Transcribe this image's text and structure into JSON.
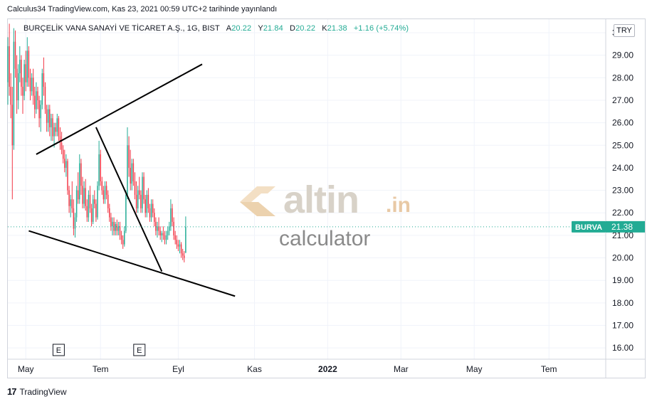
{
  "publication": {
    "text": "Calculus34 TradingView.com, Kas 23, 2021 00:59 UTC+2 tarihinde yayınlandı"
  },
  "legend": {
    "symbol": "BURÇELİK VANA SANAYİ VE TİCARET A.Ş., 1G, BIST",
    "open_label": "A",
    "open": "20.22",
    "high_label": "Y",
    "high": "21.84",
    "low_label": "D",
    "low": "20.22",
    "close_label": "K",
    "close": "21.38",
    "change": "+1.16 (+5.74%)"
  },
  "currency_button": "TRY",
  "price_tag": {
    "ticker": "BURVA",
    "price": "21.38",
    "color": "#22ab94"
  },
  "earnings_marker": "E",
  "footer": {
    "logo": "17",
    "brand": "TradingView"
  },
  "watermark": {
    "brand": "altin",
    "suffix": ".in",
    "sub": "calculator"
  },
  "colors": {
    "up": "#22ab94",
    "down": "#f23645",
    "drawing": "#000000",
    "grid": "#f0f3fa"
  },
  "chart_data": {
    "type": "candlestick",
    "title": "BURÇELİK VANA SANAYİ VE TİCARET A.Ş., 1G, BIST",
    "ylim": [
      15.5,
      30.6
    ],
    "y_ticks": [
      "30.00",
      "29.00",
      "28.00",
      "27.00",
      "26.00",
      "25.00",
      "24.00",
      "23.00",
      "22.00",
      "21.00",
      "20.00",
      "19.00",
      "18.00",
      "17.00",
      "16.00"
    ],
    "x_ticks": [
      "May",
      "Tem",
      "Eyl",
      "Kas",
      "2022",
      "Mar",
      "May",
      "Tem"
    ],
    "x_index_range": [
      0,
      400
    ],
    "x_tick_index": [
      12,
      62,
      114,
      165,
      214,
      263,
      312,
      362
    ],
    "earnings_index": [
      34,
      88
    ],
    "candles": [
      [
        0,
        27.8,
        29.8,
        26.8,
        29.4
      ],
      [
        1,
        29.4,
        30.4,
        27.2,
        27.6
      ],
      [
        2,
        27.6,
        28.2,
        26.2,
        26.8
      ],
      [
        3,
        26.8,
        27.6,
        22.6,
        25.0
      ],
      [
        4,
        25.0,
        30.2,
        24.8,
        29.6
      ],
      [
        5,
        29.6,
        30.1,
        28.0,
        28.4
      ],
      [
        6,
        28.4,
        29.0,
        26.4,
        27.0
      ],
      [
        7,
        27.0,
        28.6,
        26.6,
        28.2
      ],
      [
        8,
        28.2,
        29.4,
        27.8,
        28.8
      ],
      [
        9,
        28.8,
        29.0,
        27.2,
        27.6
      ],
      [
        10,
        27.6,
        28.0,
        26.4,
        27.2
      ],
      [
        11,
        27.2,
        28.8,
        27.0,
        28.6
      ],
      [
        12,
        28.6,
        29.2,
        27.4,
        27.8
      ],
      [
        13,
        27.8,
        29.8,
        27.6,
        29.2
      ],
      [
        14,
        29.2,
        29.4,
        27.6,
        28.0
      ],
      [
        15,
        28.0,
        28.4,
        27.0,
        27.4
      ],
      [
        16,
        27.4,
        28.2,
        27.2,
        28.0
      ],
      [
        17,
        28.0,
        28.4,
        26.8,
        27.2
      ],
      [
        18,
        27.2,
        27.6,
        26.2,
        26.6
      ],
      [
        19,
        26.6,
        27.8,
        26.4,
        27.4
      ],
      [
        20,
        27.4,
        27.6,
        26.6,
        27.0
      ],
      [
        21,
        27.0,
        27.2,
        25.8,
        26.2
      ],
      [
        22,
        26.2,
        27.0,
        25.6,
        26.8
      ],
      [
        23,
        26.8,
        28.4,
        26.6,
        28.2
      ],
      [
        24,
        28.2,
        28.9,
        27.2,
        27.6
      ],
      [
        25,
        27.6,
        27.8,
        26.4,
        26.6
      ],
      [
        26,
        26.6,
        26.8,
        25.6,
        26.0
      ],
      [
        27,
        26.0,
        26.8,
        25.6,
        26.6
      ],
      [
        28,
        26.6,
        26.8,
        25.4,
        25.8
      ],
      [
        29,
        25.8,
        26.4,
        25.2,
        26.2
      ],
      [
        30,
        26.2,
        26.4,
        25.2,
        25.4
      ],
      [
        31,
        25.4,
        26.0,
        24.9,
        25.8
      ],
      [
        32,
        25.8,
        26.0,
        25.4,
        25.6
      ],
      [
        33,
        25.6,
        26.4,
        25.4,
        26.2
      ],
      [
        34,
        26.2,
        26.3,
        25.2,
        25.4
      ],
      [
        35,
        25.4,
        25.8,
        24.8,
        25.1
      ],
      [
        36,
        25.1,
        25.6,
        24.6,
        24.8
      ],
      [
        37,
        24.8,
        25.0,
        24.2,
        24.4
      ],
      [
        38,
        24.4,
        24.8,
        23.8,
        24.0
      ],
      [
        39,
        24.0,
        24.6,
        23.6,
        24.3
      ],
      [
        40,
        24.3,
        24.4,
        22.8,
        23.0
      ],
      [
        41,
        23.0,
        23.2,
        22.0,
        22.3
      ],
      [
        42,
        22.3,
        22.8,
        21.8,
        22.6
      ],
      [
        43,
        22.6,
        23.4,
        22.0,
        22.2
      ],
      [
        44,
        22.2,
        22.6,
        21.0,
        21.3
      ],
      [
        45,
        21.3,
        22.0,
        20.9,
        21.8
      ],
      [
        46,
        21.8,
        23.2,
        21.6,
        23.0
      ],
      [
        47,
        23.0,
        23.8,
        22.4,
        22.6
      ],
      [
        48,
        22.6,
        24.6,
        22.4,
        24.2
      ],
      [
        49,
        24.2,
        24.4,
        22.8,
        23.2
      ],
      [
        50,
        23.2,
        23.6,
        22.2,
        22.4
      ],
      [
        51,
        22.4,
        23.4,
        22.2,
        23.1
      ],
      [
        52,
        23.1,
        23.5,
        22.1,
        22.3
      ],
      [
        53,
        22.3,
        22.6,
        21.6,
        21.8
      ],
      [
        54,
        21.8,
        23.0,
        21.6,
        22.8
      ],
      [
        55,
        22.8,
        23.2,
        22.0,
        22.2
      ],
      [
        56,
        22.2,
        22.4,
        21.4,
        21.6
      ],
      [
        57,
        21.6,
        22.8,
        21.5,
        22.6
      ],
      [
        58,
        22.6,
        23.0,
        22.2,
        22.4
      ],
      [
        59,
        22.4,
        22.6,
        21.6,
        21.8
      ],
      [
        60,
        21.8,
        23.4,
        21.7,
        23.2
      ],
      [
        61,
        23.2,
        25.2,
        23.0,
        24.6
      ],
      [
        62,
        24.6,
        24.8,
        23.2,
        23.4
      ],
      [
        63,
        23.4,
        23.6,
        22.8,
        23.0
      ],
      [
        64,
        23.0,
        23.2,
        22.4,
        22.6
      ],
      [
        65,
        22.6,
        23.4,
        22.4,
        23.2
      ],
      [
        66,
        23.2,
        23.4,
        22.6,
        22.8
      ],
      [
        67,
        22.8,
        23.0,
        22.0,
        22.2
      ],
      [
        68,
        22.2,
        22.4,
        21.6,
        21.8
      ],
      [
        69,
        21.8,
        22.0,
        21.2,
        21.4
      ],
      [
        70,
        21.4,
        21.8,
        21.0,
        21.6
      ],
      [
        71,
        21.6,
        21.8,
        21.0,
        21.2
      ],
      [
        72,
        21.2,
        21.6,
        21.0,
        21.5
      ],
      [
        73,
        21.5,
        21.7,
        21.0,
        21.2
      ],
      [
        74,
        21.2,
        21.6,
        21.0,
        21.4
      ],
      [
        75,
        21.4,
        21.6,
        20.8,
        21.0
      ],
      [
        76,
        21.0,
        21.2,
        20.6,
        20.8
      ],
      [
        77,
        20.8,
        21.0,
        20.4,
        20.6
      ],
      [
        78,
        20.6,
        21.4,
        20.5,
        21.2
      ],
      [
        79,
        21.2,
        23.0,
        21.1,
        22.8
      ],
      [
        80,
        22.8,
        25.8,
        22.6,
        25.0
      ],
      [
        81,
        25.0,
        25.4,
        23.6,
        24.0
      ],
      [
        82,
        24.0,
        24.8,
        23.0,
        23.3
      ],
      [
        83,
        23.3,
        24.4,
        23.0,
        24.2
      ],
      [
        84,
        24.2,
        24.4,
        23.2,
        23.4
      ],
      [
        85,
        23.4,
        23.8,
        22.6,
        22.8
      ],
      [
        86,
        22.8,
        23.4,
        22.0,
        22.2
      ],
      [
        87,
        22.2,
        23.2,
        22.0,
        23.0
      ],
      [
        88,
        23.0,
        23.6,
        22.6,
        22.8
      ],
      [
        89,
        22.8,
        23.0,
        22.0,
        22.2
      ],
      [
        90,
        22.2,
        23.8,
        22.0,
        23.6
      ],
      [
        91,
        23.6,
        23.8,
        22.4,
        22.6
      ],
      [
        92,
        22.6,
        22.8,
        21.8,
        22.0
      ],
      [
        93,
        22.0,
        23.0,
        21.8,
        22.8
      ],
      [
        94,
        22.8,
        23.1,
        22.0,
        22.2
      ],
      [
        95,
        22.2,
        22.4,
        21.6,
        21.8
      ],
      [
        96,
        21.8,
        22.6,
        21.6,
        22.4
      ],
      [
        97,
        22.4,
        22.6,
        21.8,
        22.0
      ],
      [
        98,
        22.0,
        22.2,
        21.4,
        21.6
      ],
      [
        99,
        21.6,
        21.8,
        21.0,
        21.2
      ],
      [
        100,
        21.2,
        21.6,
        20.9,
        21.4
      ],
      [
        101,
        21.4,
        21.8,
        21.0,
        21.2
      ],
      [
        102,
        21.2,
        21.4,
        20.8,
        21.0
      ],
      [
        103,
        21.0,
        21.2,
        20.7,
        21.1
      ],
      [
        104,
        21.1,
        21.4,
        20.8,
        21.0
      ],
      [
        105,
        21.0,
        21.2,
        20.6,
        20.8
      ],
      [
        106,
        20.8,
        21.2,
        20.6,
        21.0
      ],
      [
        107,
        21.0,
        21.4,
        20.8,
        21.2
      ],
      [
        108,
        21.2,
        21.6,
        21.0,
        21.4
      ],
      [
        109,
        21.4,
        22.6,
        21.2,
        22.2
      ],
      [
        110,
        22.2,
        22.4,
        21.4,
        21.6
      ],
      [
        111,
        21.6,
        21.8,
        20.8,
        21.0
      ],
      [
        112,
        21.0,
        21.2,
        20.6,
        20.8
      ],
      [
        113,
        20.8,
        21.0,
        20.4,
        20.6
      ],
      [
        114,
        20.6,
        20.8,
        20.3,
        20.5
      ],
      [
        115,
        20.5,
        20.8,
        20.2,
        20.6
      ],
      [
        116,
        20.6,
        20.7,
        20.0,
        20.2
      ],
      [
        117,
        20.2,
        20.4,
        19.9,
        20.1
      ],
      [
        118,
        20.1,
        20.3,
        19.8,
        20.0
      ],
      [
        119,
        20.22,
        21.84,
        20.22,
        21.38
      ]
    ],
    "trendlines": [
      {
        "from": [
          19,
          24.6
        ],
        "to": [
          130,
          28.6
        ]
      },
      {
        "from": [
          14,
          21.2
        ],
        "to": [
          152,
          18.3
        ]
      },
      {
        "from": [
          59,
          25.8
        ],
        "to": [
          103,
          19.4
        ]
      }
    ]
  }
}
